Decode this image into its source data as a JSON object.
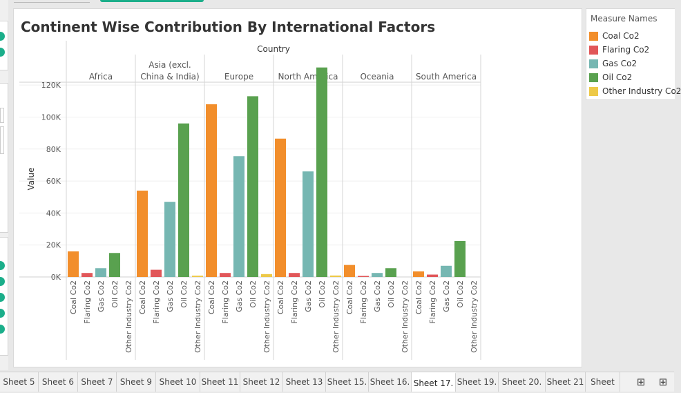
{
  "chart_data": {
    "type": "bar",
    "title": "Continent Wise Contribution By International Factors",
    "column_header": "Country",
    "ylabel": "Value",
    "ylim": [
      0,
      130000
    ],
    "yticks": [
      {
        "value": 0,
        "label": "0K"
      },
      {
        "value": 20000,
        "label": "20K"
      },
      {
        "value": 40000,
        "label": "40K"
      },
      {
        "value": 60000,
        "label": "60K"
      },
      {
        "value": 80000,
        "label": "80K"
      },
      {
        "value": 100000,
        "label": "100K"
      },
      {
        "value": 120000,
        "label": "120K"
      }
    ],
    "measures": [
      "Coal Co2",
      "Flaring Co2",
      "Gas Co2",
      "Oil Co2",
      "Other Industry Co2"
    ],
    "colors": [
      "#f28e2b",
      "#e15759",
      "#76b7b2",
      "#59a14f",
      "#edc948"
    ],
    "continents": [
      {
        "name": "Africa",
        "values": [
          16000,
          2500,
          5500,
          15000,
          0
        ]
      },
      {
        "name": "Asia (excl. China & India)",
        "values": [
          54000,
          4500,
          47000,
          96000,
          800
        ]
      },
      {
        "name": "Europe",
        "values": [
          108000,
          2500,
          75500,
          113000,
          1800
        ]
      },
      {
        "name": "North America",
        "values": [
          86500,
          2500,
          66000,
          131000,
          900
        ]
      },
      {
        "name": "Oceania",
        "values": [
          7500,
          400,
          2500,
          5500,
          0
        ]
      },
      {
        "name": "South America",
        "values": [
          3500,
          1500,
          7000,
          22500,
          0
        ]
      }
    ],
    "grid": true,
    "legend_position": "right"
  },
  "legend": {
    "title": "Measure Names",
    "items": [
      "Coal Co2",
      "Flaring Co2",
      "Gas Co2",
      "Oil Co2",
      "Other Industry Co2"
    ]
  },
  "tabs": [
    "Sheet 5",
    "Sheet 6",
    "Sheet 7",
    "Sheet 9",
    "Sheet 10",
    "Sheet 11",
    "Sheet 12",
    "Sheet 13",
    "Sheet 15.",
    "Sheet 16.",
    "Sheet 17.",
    "Sheet 19.",
    "Sheet 20.",
    "Sheet 21",
    "Sheet"
  ],
  "active_tab": "Sheet 17.",
  "icons": {
    "new_sheet": "new-worksheet-icon",
    "new_dashboard": "new-dashboard-icon"
  }
}
